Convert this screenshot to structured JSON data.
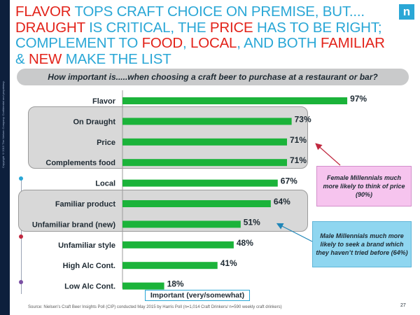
{
  "headline": {
    "segments": [
      {
        "text": "FLAVOR",
        "color": "#e2231a"
      },
      {
        "text": " TOPS CRAFT CHOICE ON PREMISE, BUT.... ",
        "color": "#2aa7d6"
      },
      {
        "text": "DRAUGHT",
        "color": "#e2231a"
      },
      {
        "text": " IS CRITICAL, THE ",
        "color": "#2aa7d6"
      },
      {
        "text": "PRICE",
        "color": "#e2231a"
      },
      {
        "text": " HAS TO BE RIGHT; COMPLEMENT TO ",
        "color": "#2aa7d6"
      },
      {
        "text": "FOOD",
        "color": "#e2231a"
      },
      {
        "text": ", ",
        "color": "#2aa7d6"
      },
      {
        "text": "LOCAL",
        "color": "#e2231a"
      },
      {
        "text": ", AND BOTH ",
        "color": "#2aa7d6"
      },
      {
        "text": "FAMILIAR",
        "color": "#e2231a"
      },
      {
        "text": " & ",
        "color": "#2aa7d6"
      },
      {
        "text": "NEW",
        "color": "#e2231a"
      },
      {
        "text": " MAKE THE LIST",
        "color": "#2aa7d6"
      }
    ]
  },
  "logo_text": "n",
  "sidebar_text": "Copyright ©2015 The Nielsen Company. Confidential and proprietary.",
  "question": "How important is.....when choosing a craft beer to purchase at a restaurant or bar?",
  "chart_data": {
    "type": "bar",
    "orientation": "horizontal",
    "categories": [
      "Flavor",
      "On Draught",
      "Price",
      "Complements food",
      "Local",
      "Familiar product",
      "Unfamiliar brand (new)",
      "Unfamiliar style",
      "High Alc Cont.",
      "Low Alc Cont."
    ],
    "values": [
      97,
      73,
      71,
      71,
      67,
      64,
      51,
      48,
      41,
      18
    ],
    "value_labels": [
      "97%",
      "73%",
      "71%",
      "71%",
      "67%",
      "64%",
      "51%",
      "48%",
      "41%",
      "18%"
    ],
    "series_label": "Important (very/somewhat)",
    "xlim": [
      0,
      100
    ],
    "bar_color": "#1bb33a",
    "grid": false
  },
  "callouts": {
    "pink": "Female Millennials much more likely to think of price (90%)",
    "blue": "Male Millennials much more likely to seek a brand which they haven’t tried before (64%)"
  },
  "legend_label": "Important (very/somewhat)",
  "source": "Source:  Nielsen's Craft Beer Insights Poll (CIP) conducted May 2015 by Harris Poll (n=1,014 Craft Drinkers/ n=590 weekly craft drinkers)",
  "page_number": "27",
  "colors": {
    "accent": "#2aa7d6",
    "highlight": "#e2231a",
    "bar": "#1bb33a",
    "pink": "#f6c4ee",
    "blue": "#8fd6f0"
  }
}
